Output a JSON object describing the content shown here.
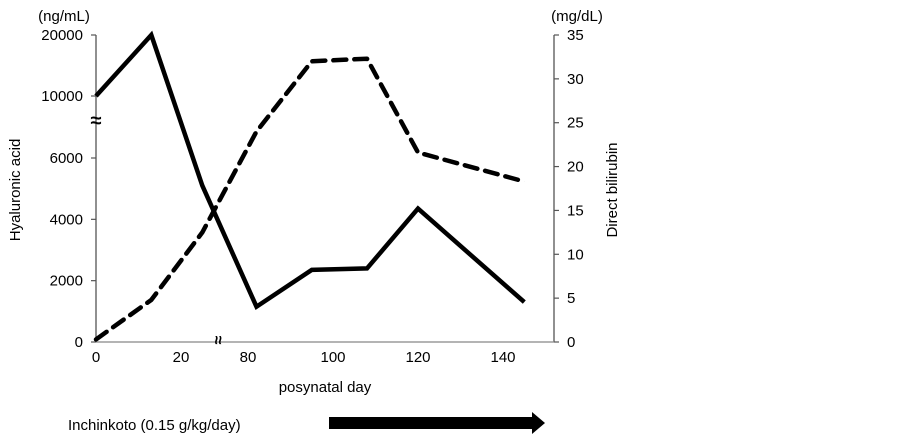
{
  "chart_data": {
    "type": "line",
    "title": "",
    "xlabel": "posynatal day",
    "left_unit": "(ng/mL)",
    "right_unit": "(mg/dL)",
    "ylabel_left": "Hyaluronic acid",
    "ylabel_right": "Direct bilirubin",
    "x_ticks": [
      "0",
      "20",
      "80",
      "100",
      "120",
      "140"
    ],
    "x_tick_values": [
      0,
      20,
      80,
      100,
      120,
      140
    ],
    "x_break_note": "axis break between 20 and 80",
    "left_ticks": [
      "0",
      "2000",
      "4000",
      "6000",
      "10000",
      "20000"
    ],
    "left_tick_values": [
      0,
      2000,
      4000,
      6000,
      10000,
      20000
    ],
    "left_break_note": "axis break between 6000 and 10000",
    "right_ticks": [
      "0",
      "5",
      "10",
      "15",
      "20",
      "25",
      "30",
      "35"
    ],
    "right_tick_values": [
      0,
      5,
      10,
      15,
      20,
      25,
      30,
      35
    ],
    "ylim_right": [
      0,
      35
    ],
    "grid": false,
    "series": [
      {
        "name": "Hyaluronic acid",
        "axis": "left",
        "style": "solid",
        "x": [
          0,
          13,
          25,
          82,
          95,
          108,
          120,
          145
        ],
        "values": [
          10000,
          20000,
          5100,
          1150,
          2350,
          2400,
          4350,
          1300
        ]
      },
      {
        "name": "Direct bilirubin",
        "axis": "right",
        "style": "dashed",
        "x": [
          0,
          13,
          25,
          82,
          95,
          108,
          120,
          145
        ],
        "values": [
          0.3,
          4.8,
          12.5,
          24,
          32,
          32.3,
          21.6,
          18.3
        ]
      }
    ],
    "annotation": {
      "label": "Inchinkoto (0.15 g/kg/day)",
      "arrow_start_day": 95,
      "arrow_end_day": 150
    }
  }
}
